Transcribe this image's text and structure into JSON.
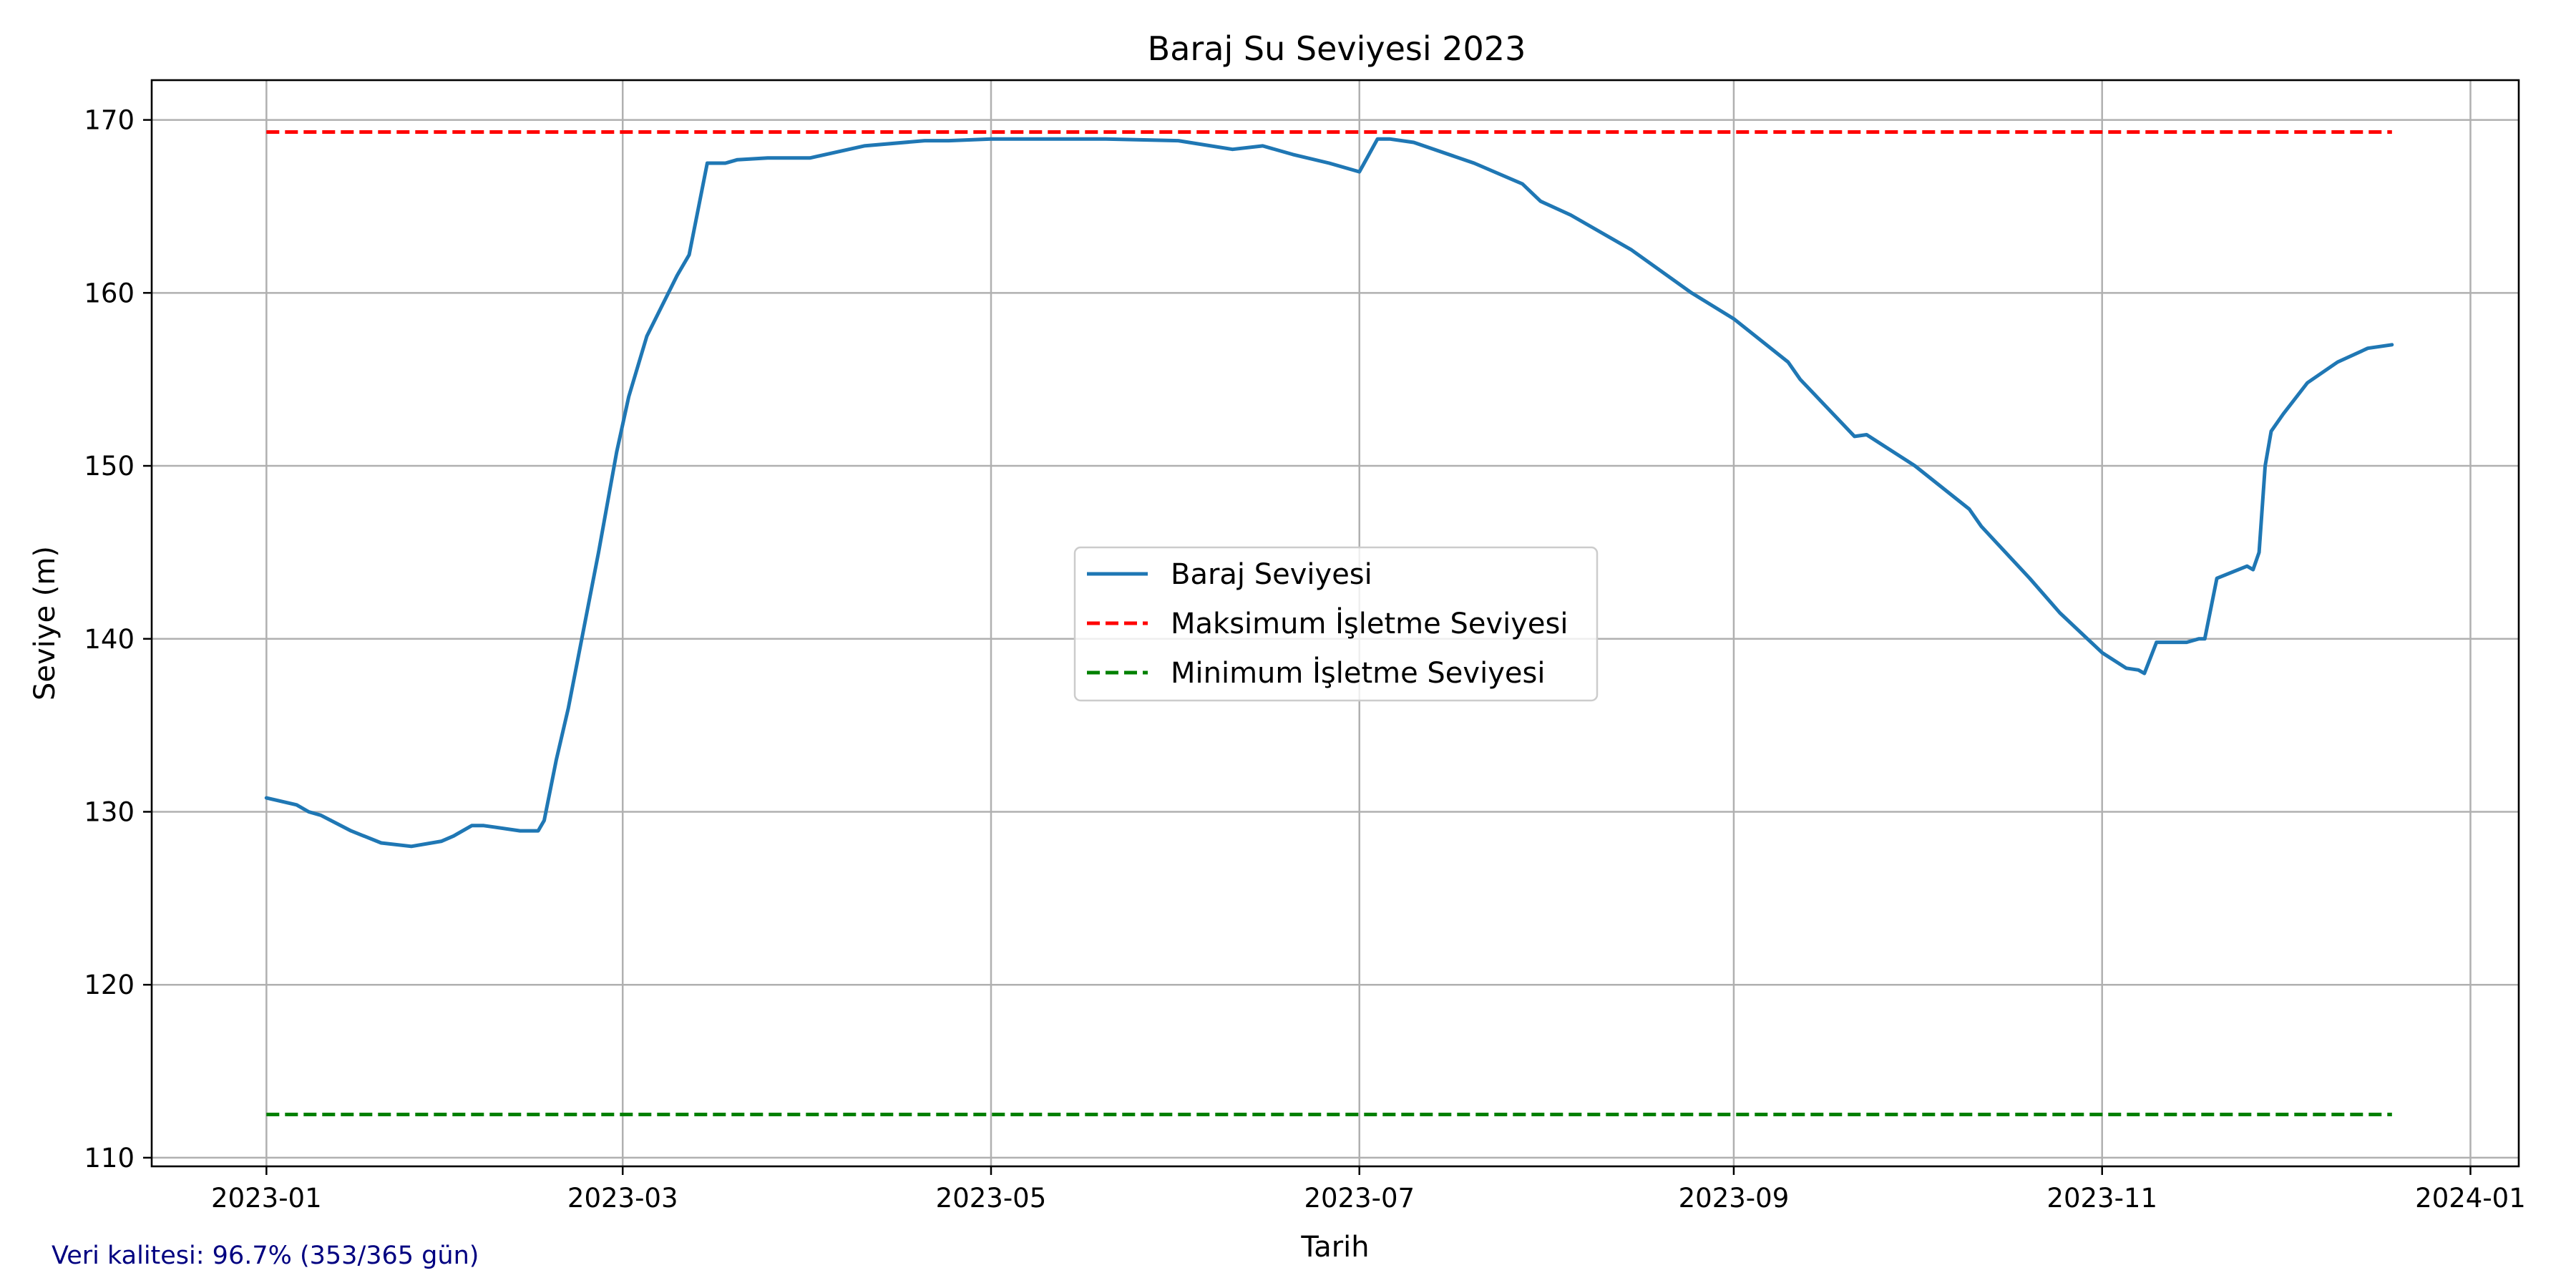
{
  "chart_data": {
    "type": "line",
    "title": "Baraj Su Seviyesi 2023",
    "xlabel": "Tarih",
    "ylabel": "Seviye (m)",
    "xlim": [
      "2022-12-13",
      "2024-01-09"
    ],
    "ylim": [
      109.5,
      172.3
    ],
    "x_ticks": [
      "2023-01",
      "2023-03",
      "2023-05",
      "2023-07",
      "2023-09",
      "2023-11",
      "2024-01"
    ],
    "y_ticks": [
      110,
      120,
      130,
      140,
      150,
      160,
      170
    ],
    "grid": true,
    "legend_position": "center",
    "series": [
      {
        "name": "Baraj Seviyesi",
        "color": "#1f77b4",
        "style": "solid",
        "x": [
          "2023-01-01",
          "2023-01-06",
          "2023-01-08",
          "2023-01-10",
          "2023-01-15",
          "2023-01-20",
          "2023-01-25",
          "2023-01-30",
          "2023-02-01",
          "2023-02-04",
          "2023-02-06",
          "2023-02-08",
          "2023-02-12",
          "2023-02-15",
          "2023-02-16",
          "2023-02-18",
          "2023-02-20",
          "2023-02-25",
          "2023-02-28",
          "2023-03-02",
          "2023-03-05",
          "2023-03-10",
          "2023-03-12",
          "2023-03-15",
          "2023-03-18",
          "2023-03-20",
          "2023-03-25",
          "2023-03-30",
          "2023-04-01",
          "2023-04-10",
          "2023-04-20",
          "2023-04-24",
          "2023-05-01",
          "2023-05-10",
          "2023-05-20",
          "2023-06-01",
          "2023-06-10",
          "2023-06-15",
          "2023-06-20",
          "2023-06-26",
          "2023-07-01",
          "2023-07-04",
          "2023-07-06",
          "2023-07-10",
          "2023-07-20",
          "2023-07-28",
          "2023-07-31",
          "2023-08-05",
          "2023-08-15",
          "2023-08-25",
          "2023-09-01",
          "2023-09-10",
          "2023-09-12",
          "2023-09-21",
          "2023-09-23",
          "2023-10-01",
          "2023-10-10",
          "2023-10-12",
          "2023-10-20",
          "2023-10-25",
          "2023-11-01",
          "2023-11-05",
          "2023-11-07",
          "2023-11-08",
          "2023-11-10",
          "2023-11-15",
          "2023-11-17",
          "2023-11-18",
          "2023-11-20",
          "2023-11-25",
          "2023-11-26",
          "2023-11-27",
          "2023-11-28",
          "2023-11-29",
          "2023-12-01",
          "2023-12-05",
          "2023-12-10",
          "2023-12-15",
          "2023-12-19"
        ],
        "y": [
          130.8,
          130.4,
          130.0,
          129.8,
          128.9,
          128.2,
          128.0,
          128.3,
          128.6,
          129.2,
          129.2,
          129.1,
          128.9,
          128.9,
          129.5,
          133.0,
          136.0,
          145.0,
          150.8,
          154.0,
          157.5,
          161.0,
          162.2,
          167.5,
          167.5,
          167.7,
          167.8,
          167.8,
          167.8,
          168.5,
          168.8,
          168.8,
          168.9,
          168.9,
          168.9,
          168.8,
          168.3,
          168.5,
          168.0,
          167.5,
          167.0,
          168.9,
          168.9,
          168.7,
          167.5,
          166.3,
          165.3,
          164.5,
          162.5,
          160.0,
          158.5,
          156.0,
          155.0,
          151.7,
          151.8,
          150.0,
          147.5,
          146.5,
          143.5,
          141.5,
          139.2,
          138.3,
          138.2,
          138.0,
          139.8,
          139.8,
          140.0,
          140.0,
          143.5,
          144.2,
          144.0,
          145.0,
          150.0,
          152.0,
          153.0,
          154.8,
          156.0,
          156.8,
          157.0
        ]
      },
      {
        "name": "Maksimum İşletme Seviyesi",
        "color": "#ff0000",
        "style": "dashed",
        "x": [
          "2023-01-01",
          "2023-12-19"
        ],
        "y": [
          169.3,
          169.3
        ]
      },
      {
        "name": "Minimum İşletme Seviyesi",
        "color": "#008000",
        "style": "dashed",
        "x": [
          "2023-01-01",
          "2023-12-19"
        ],
        "y": [
          112.5,
          112.5
        ]
      }
    ],
    "footnote": "Veri kalitesi: 96.7% (353/365 gün)",
    "footnote_color": "#000080"
  }
}
